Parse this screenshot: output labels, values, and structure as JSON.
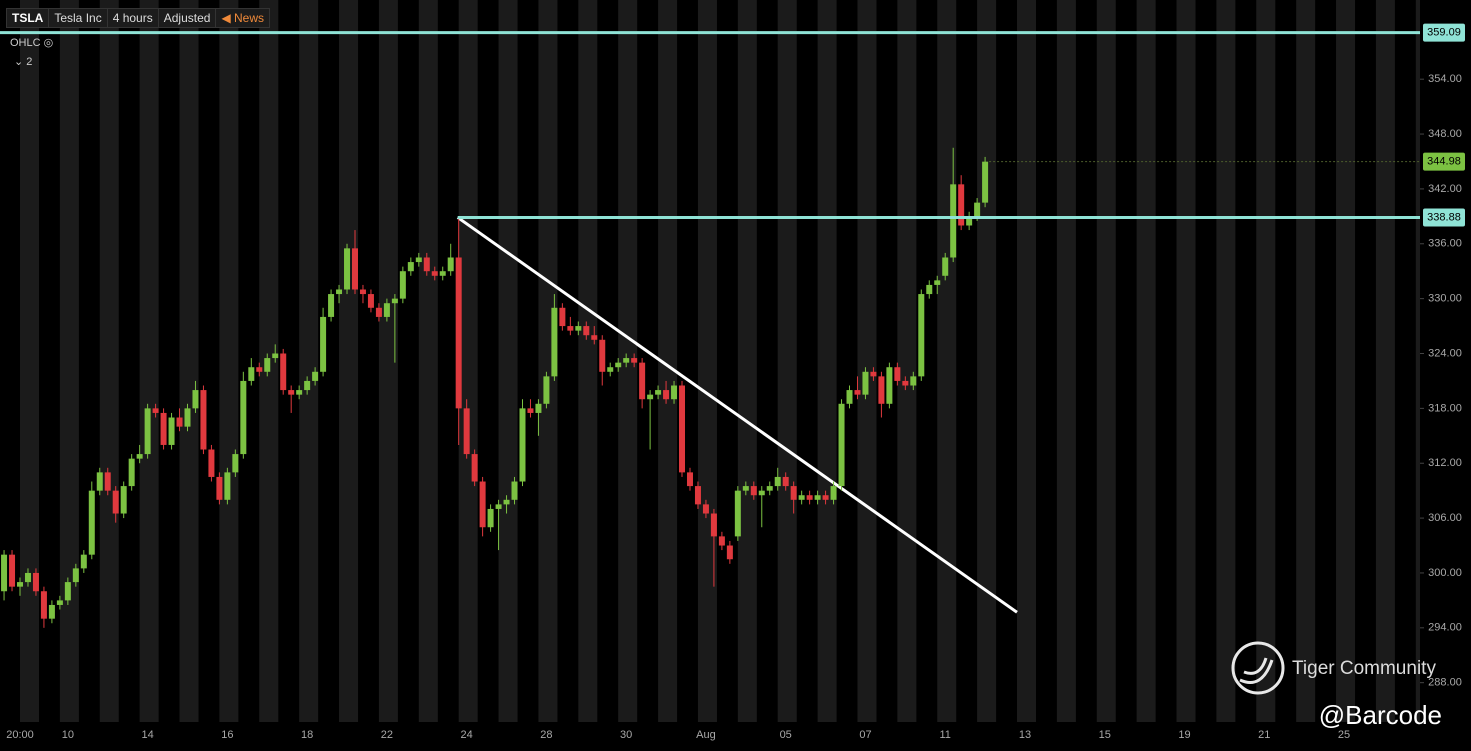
{
  "header": {
    "symbol": "TSLA",
    "name": "Tesla Inc",
    "interval": "4 hours",
    "adjustment": "Adjusted",
    "news": "News"
  },
  "legend": {
    "study": "OHLC",
    "count": "2"
  },
  "watermark": {
    "brand": "Tiger Community",
    "author": "@Barcode"
  },
  "chart_data": {
    "type": "candlestick",
    "categories": [
      null,
      null,
      "20:00",
      null,
      null,
      null,
      null,
      null,
      "10",
      null,
      null,
      null,
      null,
      null,
      null,
      null,
      null,
      null,
      "14",
      null,
      null,
      null,
      null,
      null,
      null,
      null,
      null,
      null,
      "16",
      null,
      null,
      null,
      null,
      null,
      null,
      null,
      null,
      null,
      "18",
      null,
      null,
      null,
      null,
      null,
      null,
      null,
      null,
      null,
      "22",
      null,
      null,
      null,
      null,
      null,
      null,
      null,
      null,
      null,
      "24",
      null,
      null,
      null,
      null,
      null,
      null,
      null,
      null,
      null,
      "28",
      null,
      null,
      null,
      null,
      null,
      null,
      null,
      null,
      null,
      "30",
      null,
      null,
      null,
      null,
      null,
      null,
      null,
      null,
      null,
      "Aug",
      null,
      null,
      null,
      null,
      null,
      null,
      null,
      null,
      null,
      "05",
      null,
      null,
      null,
      null,
      null,
      null,
      null,
      null,
      null,
      "07",
      null,
      null,
      null,
      null,
      null,
      null,
      null,
      null,
      null,
      "11",
      null,
      null,
      null,
      null,
      null,
      null,
      null,
      null,
      null,
      "13",
      null,
      null,
      null,
      null,
      null,
      null,
      null,
      null,
      null,
      "15",
      null,
      null,
      null,
      null,
      null,
      null,
      null,
      null,
      null,
      "19",
      null,
      null,
      null,
      null,
      null,
      null,
      null,
      null,
      null,
      "21",
      null,
      null,
      null,
      null,
      null,
      null,
      null,
      null,
      null,
      "25",
      null,
      null,
      null,
      null,
      null,
      null,
      null,
      null,
      null
    ],
    "open": [
      298,
      302,
      298.5,
      299,
      300,
      298,
      295,
      296.5,
      297,
      299,
      300.5,
      302,
      309,
      311,
      309,
      306.5,
      309.5,
      312.5,
      313,
      318,
      317.5,
      314,
      317,
      316,
      318,
      320,
      313.5,
      310.5,
      308,
      311,
      313,
      321,
      322.5,
      322,
      323.5,
      324,
      320,
      319.5,
      320,
      321,
      322,
      328,
      330.5,
      331,
      335.5,
      331,
      330.5,
      329,
      328,
      329.5,
      330,
      333,
      334,
      334.5,
      333,
      332.5,
      333,
      334.5,
      318,
      313,
      310,
      305,
      307,
      307.5,
      308,
      310,
      318,
      317.5,
      318.5,
      321.5,
      329,
      327,
      326.5,
      327,
      326,
      325.5,
      322,
      322.5,
      323,
      323.5,
      323,
      319,
      319.5,
      320,
      319,
      320.5,
      311,
      309.5,
      307.5,
      306.5,
      304,
      303,
      304,
      309,
      309.5,
      308.5,
      309,
      309.5,
      310.5,
      309.5,
      308,
      308.5,
      308,
      308.5,
      308,
      309.5,
      318.5,
      320,
      319.5,
      322,
      321.5,
      318.5,
      322.5,
      321,
      320.5,
      321.5,
      330.5,
      331.5,
      332.5,
      334.5,
      342.5,
      338,
      339,
      340.5,
      null,
      null,
      null,
      null,
      null,
      null,
      null,
      null,
      null,
      null,
      null,
      null,
      null,
      null,
      null,
      null,
      null,
      null,
      null,
      null,
      null,
      null,
      null,
      null,
      null,
      null,
      null,
      null,
      null,
      null,
      null,
      null,
      null,
      null,
      null,
      null,
      null,
      null,
      null,
      null,
      null,
      null,
      null,
      null,
      null,
      null,
      null,
      null,
      null,
      null,
      null,
      null,
      null,
      null
    ],
    "high": [
      302.5,
      302.5,
      299.5,
      300.5,
      300.5,
      298.5,
      297,
      297.5,
      299.5,
      301,
      302.5,
      310,
      311.5,
      311.5,
      309.5,
      310,
      313,
      314,
      318.5,
      318.5,
      318,
      317.5,
      318,
      318.5,
      321,
      320.5,
      314,
      311,
      311.5,
      313.5,
      322,
      323.5,
      323,
      324,
      325,
      324.5,
      320.5,
      320.5,
      321.5,
      322.5,
      329,
      331,
      331.5,
      336,
      337.5,
      331.5,
      331,
      329.5,
      330,
      330.5,
      333.5,
      334.5,
      335,
      335,
      333.5,
      333.5,
      336,
      339,
      319,
      313.5,
      310.5,
      307.5,
      308,
      308.5,
      310.5,
      319,
      319,
      319,
      322,
      330.5,
      329.5,
      328,
      327.5,
      327.5,
      327,
      326,
      323,
      323.5,
      324,
      324,
      323.5,
      320,
      320.5,
      321,
      321,
      321,
      311.5,
      310,
      308,
      307,
      304.5,
      303.5,
      309.5,
      310,
      310,
      309.5,
      310,
      311.5,
      311,
      310,
      309,
      309,
      309,
      309,
      310,
      319,
      320.5,
      321.5,
      322.5,
      322.5,
      322,
      323,
      323,
      321.5,
      322,
      331,
      332,
      332.5,
      335,
      346.5,
      343.5,
      339.5,
      341,
      345.5,
      null,
      null,
      null,
      null,
      null,
      null,
      null,
      null,
      null,
      null,
      null,
      null,
      null,
      null,
      null,
      null,
      null,
      null,
      null,
      null,
      null,
      null,
      null,
      null,
      null,
      null,
      null,
      null,
      null,
      null,
      null,
      null,
      null,
      null,
      null,
      null,
      null,
      null,
      null,
      null,
      null,
      null,
      null,
      null,
      null,
      null,
      null,
      null,
      null,
      null,
      null,
      null,
      null,
      null
    ],
    "low": [
      297,
      298,
      297.5,
      298.5,
      297.5,
      294,
      294.5,
      296,
      296.5,
      298.5,
      300,
      301.5,
      308.5,
      308.5,
      305.5,
      306,
      309,
      312,
      312.5,
      317,
      313.5,
      313.5,
      315.5,
      315.5,
      317.5,
      313,
      310,
      307.5,
      307.5,
      310.5,
      312.5,
      320.5,
      321.5,
      321.5,
      323,
      319.5,
      317.5,
      319,
      319.5,
      320.5,
      321.5,
      327.5,
      329.5,
      330.5,
      330.5,
      329.5,
      328.5,
      327.5,
      327.5,
      323,
      329.5,
      332.5,
      333.5,
      332.5,
      332,
      332,
      332.5,
      314,
      312.5,
      309.5,
      304,
      304.5,
      302.5,
      306.5,
      307.5,
      309.5,
      317,
      315,
      318,
      321,
      326.5,
      326,
      326,
      325.5,
      325,
      320.5,
      321.5,
      322,
      322.5,
      322.5,
      318,
      313.5,
      319,
      318.5,
      318.5,
      310.5,
      309,
      307,
      306,
      298.5,
      302.5,
      301,
      303.5,
      308.5,
      308,
      305,
      308.5,
      309,
      309,
      306.5,
      307.5,
      307.5,
      307.5,
      307.5,
      307.5,
      309,
      318,
      319,
      319,
      321,
      317,
      318,
      320.5,
      320,
      320,
      321,
      330,
      330.5,
      332,
      334,
      337.5,
      337.5,
      338.5,
      340,
      null,
      null,
      null,
      null,
      null,
      null,
      null,
      null,
      null,
      null,
      null,
      null,
      null,
      null,
      null,
      null,
      null,
      null,
      null,
      null,
      null,
      null,
      null,
      null,
      null,
      null,
      null,
      null,
      null,
      null,
      null,
      null,
      null,
      null,
      null,
      null,
      null,
      null,
      null,
      null,
      null,
      null,
      null,
      null,
      null,
      null,
      null,
      null,
      null,
      null,
      null,
      null,
      null,
      null
    ],
    "close": [
      302,
      298.5,
      299,
      300,
      298,
      295,
      296.5,
      297,
      299,
      300.5,
      302,
      309,
      311,
      309,
      306.5,
      309.5,
      312.5,
      313,
      318,
      317.5,
      314,
      317,
      316,
      318,
      320,
      313.5,
      310.5,
      308,
      311,
      313,
      321,
      322.5,
      322,
      323.5,
      324,
      320,
      319.5,
      320,
      321,
      322,
      328,
      330.5,
      331,
      335.5,
      331,
      330.5,
      329,
      328,
      329.5,
      330,
      333,
      334,
      334.5,
      333,
      332.5,
      333,
      334.5,
      318,
      313,
      310,
      305,
      307,
      307.5,
      308,
      310,
      318,
      317.5,
      318.5,
      321.5,
      329,
      327,
      326.5,
      327,
      326,
      325.5,
      322,
      322.5,
      323,
      323.5,
      323,
      319,
      319.5,
      320,
      319,
      320.5,
      311,
      309.5,
      307.5,
      306.5,
      304,
      303,
      301.5,
      309,
      309.5,
      308.5,
      309,
      309.5,
      310.5,
      309.5,
      308,
      308.5,
      308,
      308.5,
      308,
      309.5,
      318.5,
      320,
      319.5,
      322,
      321.5,
      318.5,
      322.5,
      321,
      320.5,
      321.5,
      330.5,
      331.5,
      332,
      334.5,
      342.5,
      338,
      339,
      340.5,
      344.98,
      null,
      null,
      null,
      null,
      null,
      null,
      null,
      null,
      null,
      null,
      null,
      null,
      null,
      null,
      null,
      null,
      null,
      null,
      null,
      null,
      null,
      null,
      null,
      null,
      null,
      null,
      null,
      null,
      null,
      null,
      null,
      null,
      null,
      null,
      null,
      null,
      null,
      null,
      null,
      null,
      null,
      null,
      null,
      null,
      null,
      null,
      null,
      null,
      null,
      null,
      null,
      null,
      null,
      null
    ],
    "up_color": "#7cc242",
    "down_color": "#e0393e",
    "last_price_color": "#7cc242",
    "ylim": [
      283.7,
      362.66
    ],
    "yticks": [
      {
        "value": 288,
        "label": "288.00"
      },
      {
        "value": 294,
        "label": "294.00"
      },
      {
        "value": 300,
        "label": "300.00"
      },
      {
        "value": 306,
        "label": "306.00"
      },
      {
        "value": 312,
        "label": "312.00"
      },
      {
        "value": 318,
        "label": "318.00"
      },
      {
        "value": 324,
        "label": "324.00"
      },
      {
        "value": 330,
        "label": "330.00"
      },
      {
        "value": 336,
        "label": "336.00"
      },
      {
        "value": 342,
        "label": "342.00"
      },
      {
        "value": 348,
        "label": "348.00"
      },
      {
        "value": 354,
        "label": "354.00"
      }
    ],
    "price_lines": [
      {
        "value": 359.09,
        "color": "#8fe3d6"
      },
      {
        "value": 338.88,
        "color": "#8fe3d6"
      }
    ],
    "trend_line": {
      "values": [
        338.88,
        295.7
      ],
      "color": "#ffffff"
    }
  }
}
